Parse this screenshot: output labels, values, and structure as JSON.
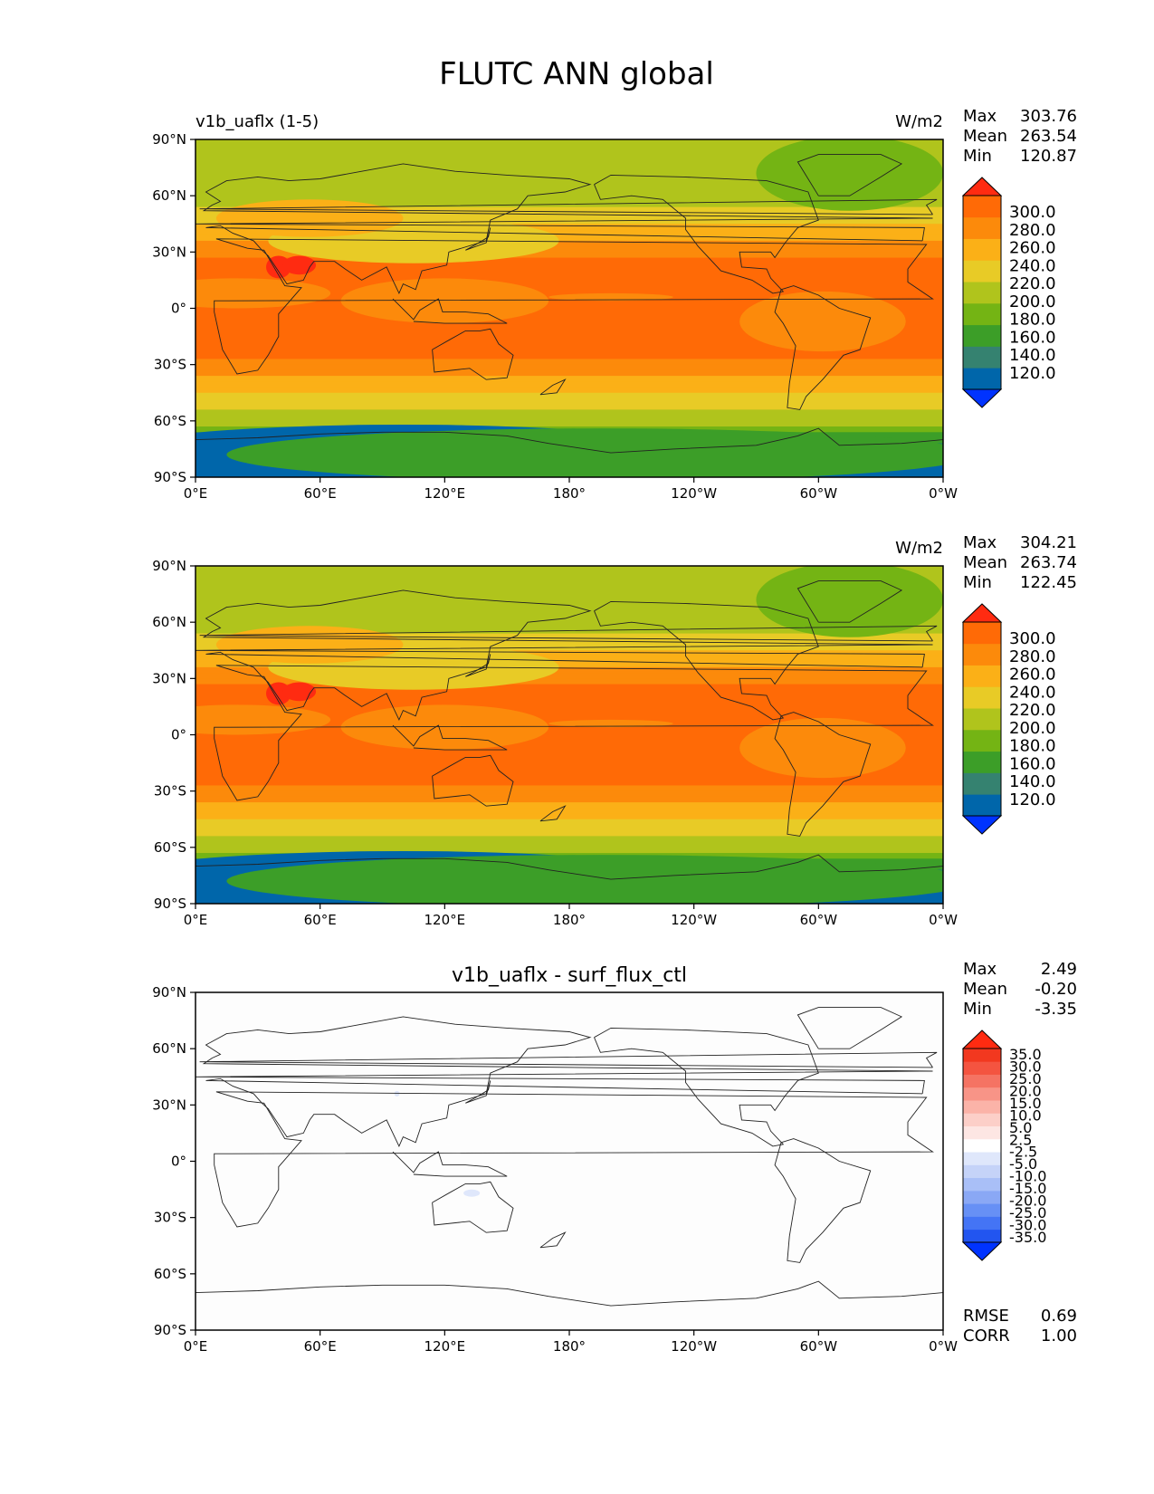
{
  "title": "FLUTC ANN global",
  "colors": {
    "abs": [
      "#0033ff",
      "#0066aa",
      "#358270",
      "#3c9e28",
      "#74b414",
      "#b0c41c",
      "#e8cb26",
      "#fbb017",
      "#fc8a0b",
      "#ff6a06",
      "#ff2b11"
    ],
    "diff": [
      "#0033ff",
      "#2255f0",
      "#4474f5",
      "#6790f5",
      "#8aa8f5",
      "#a9bff7",
      "#c5d3f8",
      "#dfe7fb",
      "#ffffff",
      "#fde6e3",
      "#fccfc8",
      "#fbb3a8",
      "#f89487",
      "#f57363",
      "#f45440",
      "#f2381f",
      "#ff2b11"
    ]
  },
  "chart_data": [
    {
      "type": "heatmap",
      "subtitle_left": "v1b_uaflx (1-5)",
      "subtitle_center": "",
      "units": "W/m2",
      "stats": [
        {
          "label": "Max",
          "value": "303.76"
        },
        {
          "label": "Mean",
          "value": "263.54"
        },
        {
          "label": "Min",
          "value": "120.87"
        }
      ],
      "xticks": [
        "0°E",
        "60°E",
        "120°E",
        "180°",
        "120°W",
        "60°W",
        "0°W"
      ],
      "yticks": [
        "90°N",
        "60°N",
        "30°N",
        "0°",
        "30°S",
        "60°S",
        "90°S"
      ],
      "levels": [
        "300.0",
        "280.0",
        "260.0",
        "240.0",
        "220.0",
        "200.0",
        "180.0",
        "160.0",
        "140.0",
        "120.0"
      ],
      "xlim": [
        0,
        360
      ],
      "ylim": [
        -90,
        90
      ]
    },
    {
      "type": "heatmap",
      "subtitle_left": "",
      "subtitle_center": "",
      "units": "W/m2",
      "stats": [
        {
          "label": "Max",
          "value": "304.21"
        },
        {
          "label": "Mean",
          "value": "263.74"
        },
        {
          "label": "Min",
          "value": "122.45"
        }
      ],
      "xticks": [
        "0°E",
        "60°E",
        "120°E",
        "180°",
        "120°W",
        "60°W",
        "0°W"
      ],
      "yticks": [
        "90°N",
        "60°N",
        "30°N",
        "0°",
        "30°S",
        "60°S",
        "90°S"
      ],
      "levels": [
        "300.0",
        "280.0",
        "260.0",
        "240.0",
        "220.0",
        "200.0",
        "180.0",
        "160.0",
        "140.0",
        "120.0"
      ],
      "xlim": [
        0,
        360
      ],
      "ylim": [
        -90,
        90
      ]
    },
    {
      "type": "heatmap",
      "subtitle_left": "",
      "subtitle_center": "v1b_uaflx - surf_flux_ctl",
      "units": "",
      "stats": [
        {
          "label": "Max",
          "value": "2.49"
        },
        {
          "label": "Mean",
          "value": "-0.20"
        },
        {
          "label": "Min",
          "value": "-3.35"
        }
      ],
      "extra_stats": [
        {
          "label": "RMSE",
          "value": "0.69"
        },
        {
          "label": "CORR",
          "value": "1.00"
        }
      ],
      "xticks": [
        "0°E",
        "60°E",
        "120°E",
        "180°",
        "120°W",
        "60°W",
        "0°W"
      ],
      "yticks": [
        "90°N",
        "60°N",
        "30°N",
        "0°",
        "30°S",
        "60°S",
        "90°S"
      ],
      "levels": [
        "35.0",
        "30.0",
        "25.0",
        "20.0",
        "15.0",
        "10.0",
        "5.0",
        "2.5",
        "-2.5",
        "-5.0",
        "-10.0",
        "-15.0",
        "-20.0",
        "-25.0",
        "-30.0",
        "-35.0"
      ],
      "xlim": [
        0,
        360
      ],
      "ylim": [
        -90,
        90
      ]
    }
  ]
}
